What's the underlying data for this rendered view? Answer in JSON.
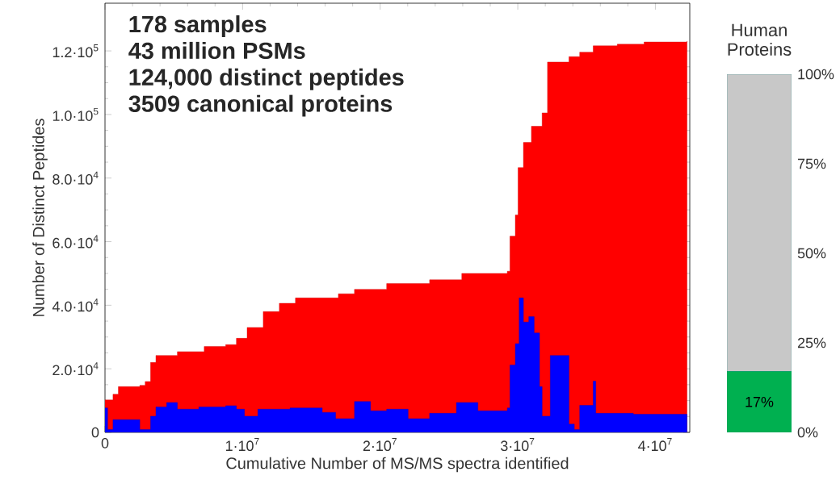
{
  "chart_data": [
    {
      "type": "area",
      "xlabel": "Cumulative Number of MS/MS spectra identified",
      "ylabel": "Number of Distinct Peptides",
      "annotations": [
        "178 samples",
        "43 million PSMs",
        "124,000 distinct peptides",
        "3509 canonical proteins"
      ],
      "xlim": [
        0,
        42500000
      ],
      "ylim": [
        0,
        135000
      ],
      "xticks": [
        0,
        {
          "value": 10000000,
          "label": "1·10$^{7}$"
        },
        {
          "value": 20000000,
          "label": "2·10$^{7}$"
        },
        {
          "value": 30000000,
          "label": "3·10$^{7}$"
        },
        {
          "value": 40000000,
          "label": "4·10$^{7}$"
        }
      ],
      "yticks": [
        0,
        {
          "value": 20000,
          "label": "2.0·10$^{4}$"
        },
        {
          "value": 40000,
          "label": "4.0·10$^{4}$"
        },
        {
          "value": 60000,
          "label": "6.0·10$^{4}$"
        },
        {
          "value": 80000,
          "label": "8.0·10$^{4}$"
        },
        {
          "value": 100000,
          "label": "1.0·10$^{5}$"
        },
        {
          "value": 120000,
          "label": "1.2·10$^{5}$"
        }
      ],
      "series": [
        {
          "color": "#ff0000",
          "x": [
            0,
            580000,
            970000,
            2530000,
            2920000,
            3310000,
            3700000,
            5260000,
            7210000,
            8770000,
            9550000,
            10330000,
            11500000,
            12670000,
            13840000,
            16960000,
            18130000,
            20470000,
            23590000,
            25930000,
            29240000,
            29430000,
            29820000,
            30020000,
            30410000,
            30990000,
            31770000,
            32160000,
            33720000,
            34500000,
            35480000,
            37230000,
            39180000,
            42300000
          ],
          "values": [
            10200,
            12000,
            14400,
            14800,
            16000,
            22000,
            24200,
            25400,
            27000,
            27600,
            29600,
            33000,
            38000,
            40600,
            42300,
            43600,
            45000,
            46800,
            48000,
            50000,
            50700,
            61700,
            68400,
            83300,
            91200,
            96300,
            100500,
            116500,
            118200,
            119600,
            121600,
            122100,
            122800,
            123100
          ]
        },
        {
          "color": "#0000ff",
          "x": [
            0,
            190000,
            580000,
            2530000,
            2730000,
            3310000,
            3700000,
            4480000,
            5260000,
            6820000,
            8770000,
            9550000,
            10140000,
            11110000,
            13450000,
            15790000,
            16760000,
            18130000,
            19300000,
            20470000,
            22030000,
            23590000,
            25540000,
            27100000,
            29240000,
            29430000,
            29820000,
            30100000,
            30410000,
            30800000,
            31190000,
            31580000,
            31770000,
            32360000,
            33720000,
            34110000,
            34500000,
            35480000,
            35670000,
            38400000,
            42300000
          ],
          "values": [
            7700,
            900,
            4000,
            900,
            900,
            5100,
            8000,
            9400,
            7300,
            8000,
            8400,
            7300,
            5100,
            7300,
            7700,
            6300,
            4300,
            9700,
            6800,
            7300,
            4300,
            6000,
            9400,
            6800,
            7700,
            21200,
            27900,
            42300,
            34700,
            36400,
            31300,
            14400,
            5100,
            24200,
            2600,
            900,
            8500,
            16100,
            6000,
            5700,
            5700
          ]
        }
      ]
    },
    {
      "type": "bar",
      "stacked": true,
      "title": "Human Proteins",
      "categories": [
        null
      ],
      "tick_labels": "y",
      "ylim": [
        0,
        100
      ],
      "yticks": [
        {
          "value": 0,
          "label": "0%"
        },
        {
          "value": 25,
          "label": "25%"
        },
        {
          "value": 50,
          "label": "50%"
        },
        {
          "value": 75,
          "label": "75%"
        },
        {
          "value": 100,
          "label": "100%"
        }
      ],
      "series": [
        {
          "color": "#00b050",
          "values": [
            17
          ],
          "value_labels": [
            "17%"
          ]
        },
        {
          "color": "#c8c8c8",
          "values": [
            83
          ],
          "value_labels": [
            null
          ]
        }
      ]
    }
  ]
}
